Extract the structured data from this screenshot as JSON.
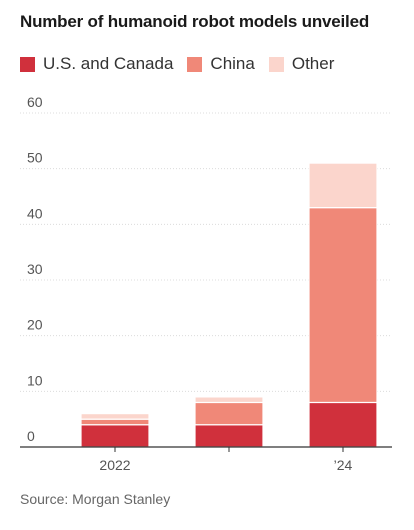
{
  "chart_data": {
    "type": "bar",
    "stacked": true,
    "title": "Number of humanoid robot models unveiled",
    "categories": [
      "2022",
      "",
      "’24"
    ],
    "series": [
      {
        "name": "U.S. and Canada",
        "color": "#d0303c",
        "values": [
          4,
          4,
          8
        ]
      },
      {
        "name": "China",
        "color": "#f08878",
        "values": [
          1,
          4,
          35
        ]
      },
      {
        "name": "Other",
        "color": "#fbd5cc",
        "values": [
          1,
          1,
          8
        ]
      }
    ],
    "ylim": [
      0,
      60
    ],
    "yticks": [
      0,
      10,
      20,
      30,
      40,
      50,
      60
    ],
    "grid": true,
    "legend": "top-left",
    "source": "Source: Morgan Stanley"
  }
}
